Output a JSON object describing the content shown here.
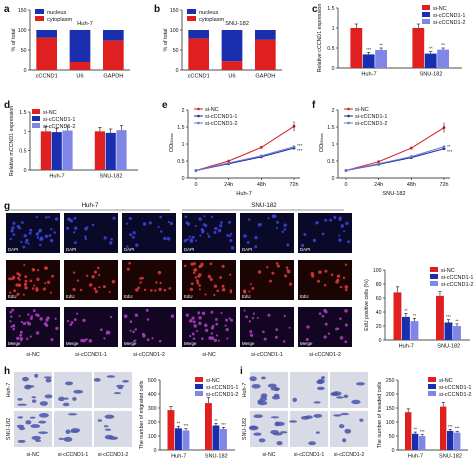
{
  "colors": {
    "red": "#e02020",
    "blue": "#1a2fb0",
    "lightblue": "#7f86e6",
    "nucleus": "#1a2fb0",
    "cytoplasm": "#e02020",
    "nc_line": "#d21f1f",
    "kd1_line": "#1f2d9a",
    "kd2_line": "#6a73da",
    "dapi_bg": "#0a0a28",
    "dapi_dot": "#3a47e6",
    "edu_bg": "#1a0404",
    "edu_dot": "#e83a3a",
    "merge_bg": "#120622",
    "merge_dot": "#b540c8",
    "stain_bg": "#d8dae6",
    "stain_cell": "#4a55a8"
  },
  "panels": {
    "a": {
      "letter": "a",
      "cell": "Huh-7"
    },
    "b": {
      "letter": "b",
      "cell": "SNU-182"
    },
    "c": {
      "letter": "c"
    },
    "d": {
      "letter": "d"
    },
    "e": {
      "letter": "e",
      "xlabel": "Huh-7"
    },
    "f": {
      "letter": "f",
      "xlabel": "SNU-182"
    },
    "g": {
      "letter": "g",
      "col_groups": [
        "Huh-7",
        "SNU-182"
      ],
      "row_labels": [
        "DAPI",
        "EdU",
        "Merge"
      ],
      "col_labels": [
        "si-NC",
        "si-cCCND1-1",
        "si-cCCND1-2"
      ]
    },
    "h": {
      "letter": "h",
      "row_labels": [
        "Huh-7",
        "SNU-182"
      ],
      "col_labels": [
        "si-NC",
        "si-cCCND1-1",
        "si-cCCND1-2"
      ]
    },
    "i": {
      "letter": "i",
      "row_labels": [
        "Huh-7",
        "SNU-182"
      ],
      "col_labels": [
        "si-NC",
        "si-cCCND1-1",
        "si-cCCND1-2"
      ]
    }
  },
  "chart_data": [
    {
      "id": "a",
      "type": "bar",
      "stacked": true,
      "title": "Huh-7",
      "categories": [
        "cCCND1",
        "U6",
        "GAPDH"
      ],
      "series": [
        {
          "name": "nucleus",
          "values": [
            19,
            80,
            26
          ]
        },
        {
          "name": "cytoplasm",
          "values": [
            81,
            20,
            74
          ]
        }
      ],
      "ylabel": "% of total",
      "ylim": [
        0,
        150
      ],
      "yticks": [
        0,
        50,
        100,
        150
      ],
      "legend": "top-left"
    },
    {
      "id": "b",
      "type": "bar",
      "stacked": true,
      "title": "SNU-182",
      "categories": [
        "cCCND1",
        "U6",
        "GAPDH"
      ],
      "series": [
        {
          "name": "nucleus",
          "values": [
            21,
            78,
            24
          ]
        },
        {
          "name": "cytoplasm",
          "values": [
            79,
            22,
            76
          ]
        }
      ],
      "ylabel": "% of total",
      "ylim": [
        0,
        150
      ],
      "yticks": [
        0,
        50,
        100,
        150
      ],
      "legend": "top-left"
    },
    {
      "id": "c",
      "type": "bar",
      "categories": [
        "Huh-7",
        "SNU-182"
      ],
      "series": [
        {
          "name": "si-NC",
          "values": [
            1.0,
            1.0
          ],
          "err": [
            0.1,
            0.1
          ]
        },
        {
          "name": "si-cCCND1-1",
          "values": [
            0.34,
            0.36
          ],
          "err": [
            0.05,
            0.05
          ]
        },
        {
          "name": "si-cCCND1-2",
          "values": [
            0.45,
            0.46
          ],
          "err": [
            0.05,
            0.04
          ]
        }
      ],
      "annotations": [
        [
          "***",
          "^^"
        ],
        [
          "**",
          "^^"
        ]
      ],
      "ylabel": "Relative cCCND1 expression",
      "ylim": [
        0,
        1.5
      ],
      "yticks": [
        0.0,
        0.5,
        1.0,
        1.5
      ],
      "legend": "top-right"
    },
    {
      "id": "d",
      "type": "bar",
      "categories": [
        "Huh-7",
        "SNU-182"
      ],
      "series": [
        {
          "name": "si-NC",
          "values": [
            1.0,
            1.0
          ],
          "err": [
            0.12,
            0.1
          ]
        },
        {
          "name": "si-cCCND1-1",
          "values": [
            0.98,
            0.96
          ],
          "err": [
            0.1,
            0.1
          ]
        },
        {
          "name": "si-cCCND1-2",
          "values": [
            1.02,
            1.03
          ],
          "err": [
            0.12,
            0.12
          ]
        }
      ],
      "ylabel": "Relative mCCND1 expression",
      "ylim": [
        0,
        1.5
      ],
      "yticks": [
        0.0,
        0.5,
        1.0,
        1.5
      ],
      "legend": "top-left"
    },
    {
      "id": "e",
      "type": "line",
      "x": [
        "0",
        "24h",
        "48h",
        "72h"
      ],
      "series": [
        {
          "name": "si-NC",
          "values": [
            0.22,
            0.5,
            0.9,
            1.52
          ]
        },
        {
          "name": "si-cCCND1-1",
          "values": [
            0.22,
            0.42,
            0.62,
            0.88
          ]
        },
        {
          "name": "si-cCCND1-2",
          "values": [
            0.22,
            0.44,
            0.65,
            0.92
          ]
        }
      ],
      "annotations": [
        "***",
        "***"
      ],
      "xlabel": "Huh-7",
      "ylabel": "OD",
      "ylabel_sub": "450nm",
      "ylim": [
        0.0,
        2.0
      ],
      "yticks": [
        0.0,
        0.5,
        1.0,
        1.5,
        2.0
      ],
      "legend": "top-left"
    },
    {
      "id": "f",
      "type": "line",
      "x": [
        "0",
        "24h",
        "48h",
        "72h"
      ],
      "series": [
        {
          "name": "si-NC",
          "values": [
            0.22,
            0.48,
            0.88,
            1.48
          ]
        },
        {
          "name": "si-cCCND1-1",
          "values": [
            0.22,
            0.4,
            0.6,
            0.86
          ]
        },
        {
          "name": "si-cCCND1-2",
          "values": [
            0.22,
            0.42,
            0.63,
            0.92
          ]
        }
      ],
      "annotations": [
        "**",
        "***"
      ],
      "xlabel": "SNU-182",
      "ylabel": "OD",
      "ylabel_sub": "450nm",
      "ylim": [
        0.0,
        2.0
      ],
      "yticks": [
        0.0,
        0.5,
        1.0,
        1.5,
        2.0
      ],
      "legend": "top-left"
    },
    {
      "id": "g",
      "type": "bar",
      "categories": [
        "Huh-7",
        "SNU-182"
      ],
      "series": [
        {
          "name": "si-NC",
          "values": [
            68,
            63
          ],
          "err": [
            8,
            6
          ]
        },
        {
          "name": "si-cCCND1-1",
          "values": [
            33,
            25
          ],
          "err": [
            5,
            4
          ]
        },
        {
          "name": "si-cCCND1-2",
          "values": [
            27,
            20
          ],
          "err": [
            4,
            3
          ]
        }
      ],
      "annotations": [
        [
          "**",
          "***"
        ],
        [
          "**",
          "**"
        ]
      ],
      "ylabel": "EdU positive cells (%)",
      "ylim": [
        0,
        100
      ],
      "yticks": [
        0,
        20,
        40,
        60,
        80,
        100
      ],
      "legend": "top-right"
    },
    {
      "id": "h",
      "type": "bar",
      "categories": [
        "Huh-7",
        "SNU-182"
      ],
      "series": [
        {
          "name": "si-NC",
          "values": [
            285,
            335
          ],
          "err": [
            25,
            40
          ]
        },
        {
          "name": "si-cCCND1-1",
          "values": [
            155,
            175
          ],
          "err": [
            15,
            15
          ]
        },
        {
          "name": "si-cCCND1-2",
          "values": [
            140,
            150
          ],
          "err": [
            12,
            12
          ]
        }
      ],
      "annotations": [
        [
          "**",
          "**"
        ],
        [
          "***",
          "***"
        ]
      ],
      "ylabel": "The number of migrated cells",
      "ylim": [
        0,
        500
      ],
      "yticks": [
        0,
        100,
        200,
        300,
        400,
        500
      ],
      "legend": "top-right"
    },
    {
      "id": "i",
      "type": "bar",
      "categories": [
        "Huh-7",
        "SNU-182"
      ],
      "series": [
        {
          "name": "si-NC",
          "values": [
            135,
            155
          ],
          "err": [
            12,
            15
          ]
        },
        {
          "name": "si-cCCND1-1",
          "values": [
            58,
            68
          ],
          "err": [
            6,
            6
          ]
        },
        {
          "name": "si-cCCND1-2",
          "values": [
            50,
            62
          ],
          "err": [
            5,
            5
          ]
        }
      ],
      "annotations": [
        [
          "**",
          "***"
        ],
        [
          "***",
          "***"
        ]
      ],
      "ylabel": "The number of invaded cells",
      "ylim": [
        0,
        250
      ],
      "yticks": [
        0,
        50,
        100,
        150,
        200,
        250
      ],
      "legend": "top-right"
    }
  ]
}
